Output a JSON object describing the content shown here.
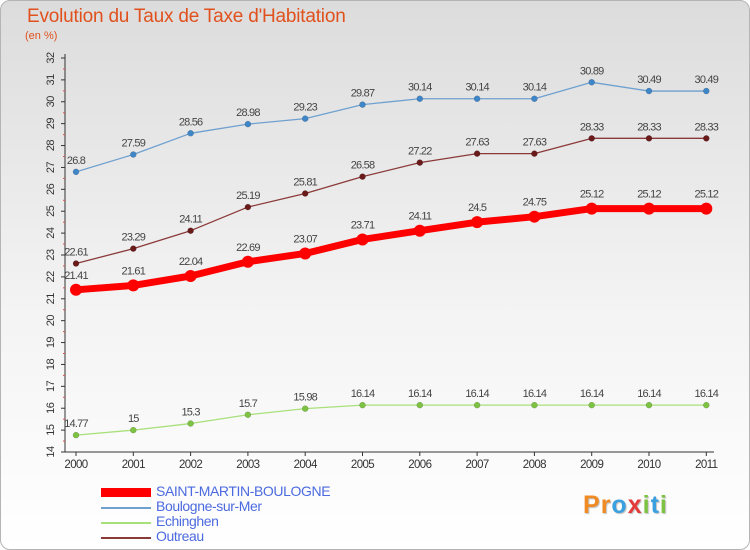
{
  "title": "Evolution du Taux de Taxe d'Habitation",
  "subtitle": "(en %)",
  "logo": {
    "letters": [
      "P",
      "r",
      "o",
      "x",
      "i",
      "t",
      "i"
    ],
    "colors": [
      "#f08a24",
      "#f08a24",
      "#3aa0e0",
      "#e53a3a",
      "#7dc242",
      "#3aa0e0",
      "#7dc242"
    ]
  },
  "colors": {
    "title": "#e0511d",
    "legend_text": "#4c6ae0",
    "axis": "#333333"
  },
  "chart_data": {
    "type": "line",
    "title": "Evolution du Taux de Taxe d'Habitation",
    "ylabel": "(en %)",
    "ylim": [
      14,
      32
    ],
    "yticks": [
      "14",
      "15",
      "16",
      "17",
      "18",
      "19",
      "20",
      "21",
      "22",
      "23",
      "24",
      "25",
      "26",
      "27",
      "28",
      "29",
      "30",
      "31",
      "32"
    ],
    "x": [
      "2000",
      "2001",
      "2002",
      "2003",
      "2004",
      "2005",
      "2006",
      "2007",
      "2008",
      "2009",
      "2010",
      "2011"
    ],
    "grid": false,
    "legend_position": "bottom-left",
    "series": [
      {
        "name": "SAINT-MARTIN-BOULOGNE",
        "color": "#ff0000",
        "marker_color": "#ff0000",
        "emphasis": true,
        "values": [
          21.41,
          21.61,
          22.04,
          22.69,
          23.07,
          23.71,
          24.11,
          24.5,
          24.75,
          25.12,
          25.12,
          25.12
        ],
        "labels": [
          "21.41",
          "21.61",
          "22.04",
          "22.69",
          "23.07",
          "23.71",
          "24.11",
          "24.5",
          "24.75",
          "25.12",
          "25.12",
          "25.12"
        ]
      },
      {
        "name": "Boulogne-sur-Mer",
        "color": "#6fa0d0",
        "marker_color": "#3f86c8",
        "values": [
          26.8,
          27.59,
          28.56,
          28.98,
          29.23,
          29.87,
          30.14,
          30.14,
          30.14,
          30.89,
          30.49,
          30.49
        ],
        "labels": [
          "26.8",
          "27.59",
          "28.56",
          "28.98",
          "29.23",
          "29.87",
          "30.14",
          "30.14",
          "30.14",
          "30.89",
          "30.49",
          "30.49"
        ]
      },
      {
        "name": "Echinghen",
        "color": "#a8e07a",
        "marker_color": "#7dc242",
        "values": [
          14.77,
          15,
          15.3,
          15.7,
          15.98,
          16.14,
          16.14,
          16.14,
          16.14,
          16.14,
          16.14,
          16.14
        ],
        "labels": [
          "14.77",
          "15",
          "15.3",
          "15.7",
          "15.98",
          "16.14",
          "16.14",
          "16.14",
          "16.14",
          "16.14",
          "16.14",
          "16.14"
        ]
      },
      {
        "name": "Outreau",
        "color": "#8b3a3a",
        "marker_color": "#6b1a1a",
        "values": [
          22.61,
          23.29,
          24.11,
          25.19,
          25.81,
          26.58,
          27.22,
          27.63,
          27.63,
          28.33,
          28.33,
          28.33
        ],
        "labels": [
          "22.61",
          "23.29",
          "24.11",
          "25.19",
          "25.81",
          "26.58",
          "27.22",
          "27.63",
          "27.63",
          "28.33",
          "28.33",
          "28.33"
        ]
      }
    ]
  }
}
